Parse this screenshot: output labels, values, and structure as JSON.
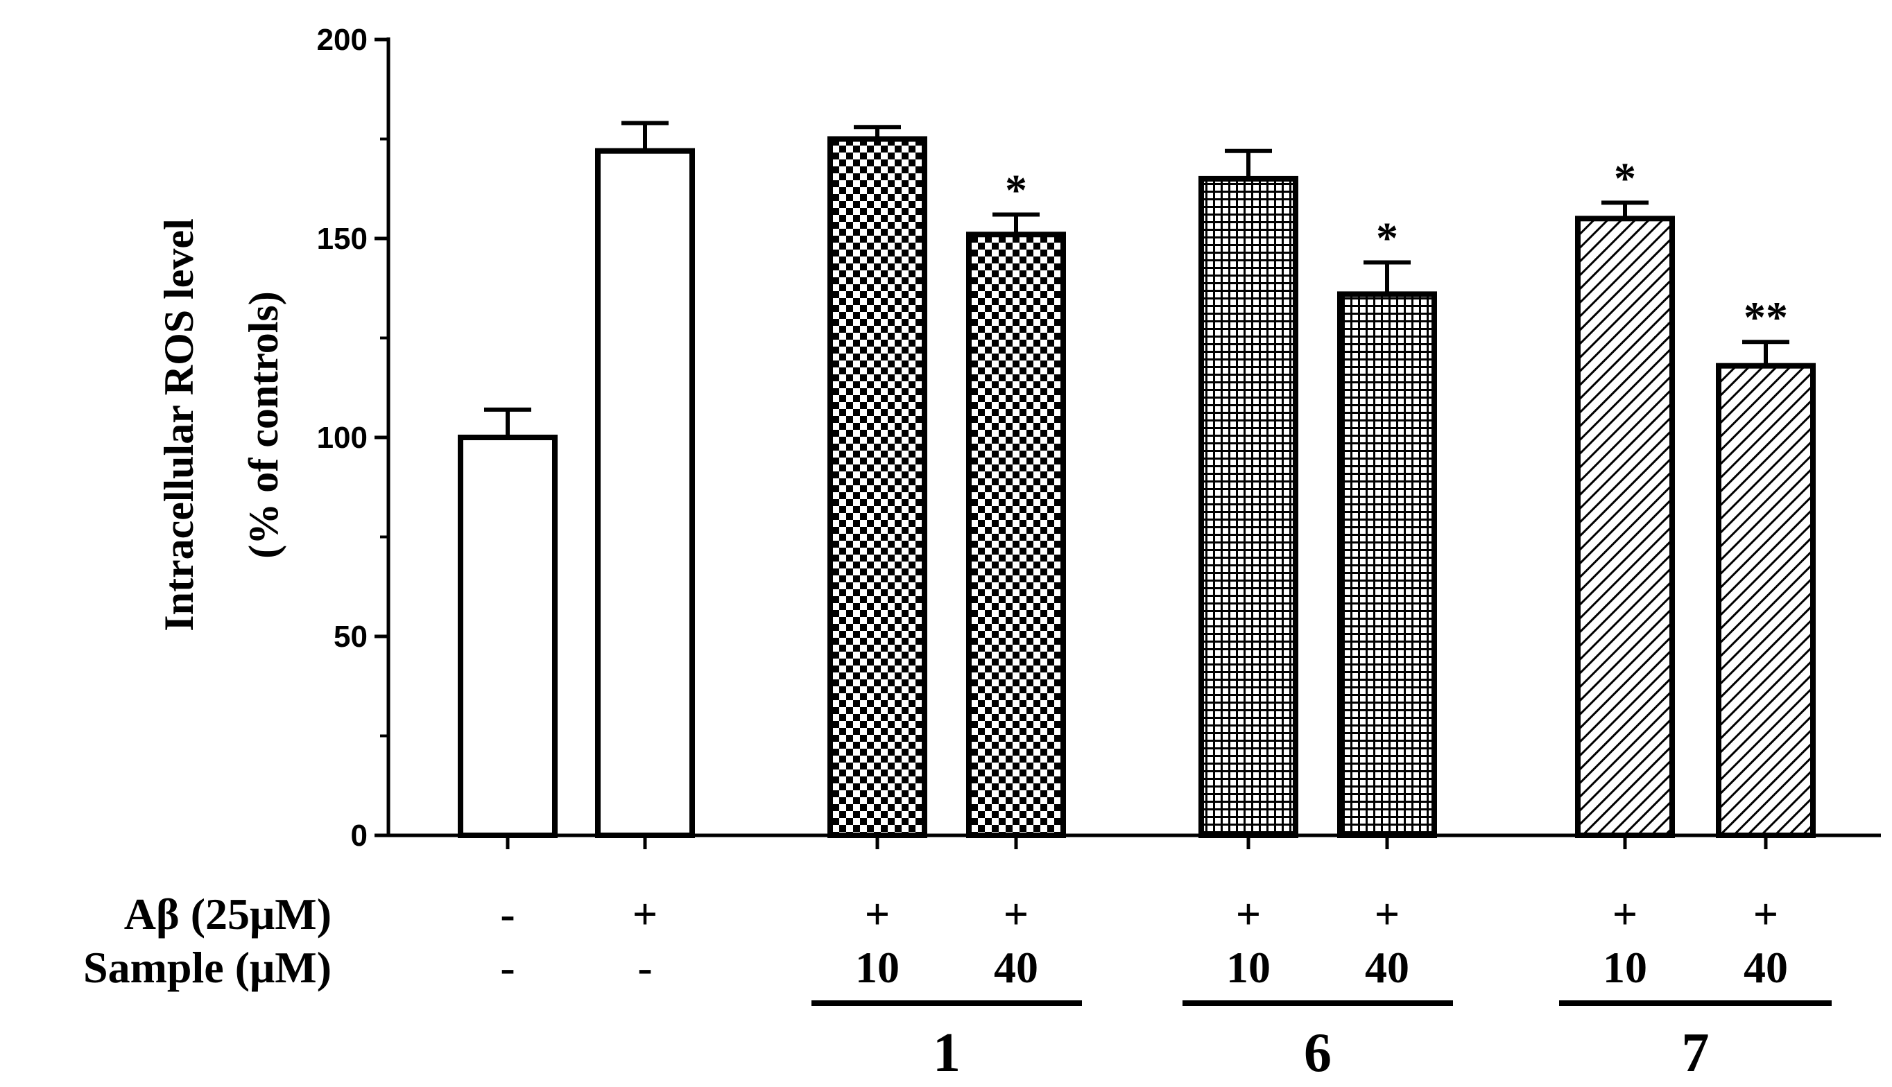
{
  "chart_data": {
    "type": "bar",
    "ylabel_line1": "Intracellular ROS level",
    "ylabel_line2": "(% of controls)",
    "ylim": [
      0,
      200
    ],
    "yticks": [
      "0",
      "50",
      "100",
      "150",
      "200"
    ],
    "row_labels": [
      "Aβ (25μM)",
      "Sample (μM)"
    ],
    "bars": [
      {
        "value": 100,
        "error": 7,
        "pattern": "open",
        "abeta": "-",
        "sample": "-",
        "sig": ""
      },
      {
        "value": 172,
        "error": 7,
        "pattern": "open",
        "abeta": "+",
        "sample": "-",
        "sig": ""
      },
      {
        "value": 175,
        "error": 3,
        "pattern": "checker",
        "abeta": "+",
        "sample": "10",
        "sig": ""
      },
      {
        "value": 151,
        "error": 5,
        "pattern": "checker",
        "abeta": "+",
        "sample": "40",
        "sig": "*"
      },
      {
        "value": 165,
        "error": 7,
        "pattern": "grid",
        "abeta": "+",
        "sample": "10",
        "sig": ""
      },
      {
        "value": 136,
        "error": 8,
        "pattern": "grid",
        "abeta": "+",
        "sample": "40",
        "sig": "*"
      },
      {
        "value": 155,
        "error": 4,
        "pattern": "hatch",
        "abeta": "+",
        "sample": "10",
        "sig": "*"
      },
      {
        "value": 118,
        "error": 6,
        "pattern": "hatch",
        "abeta": "+",
        "sample": "40",
        "sig": "**"
      }
    ],
    "groups": [
      {
        "label": "1",
        "bars": [
          2,
          3
        ]
      },
      {
        "label": "6",
        "bars": [
          4,
          5
        ]
      },
      {
        "label": "7",
        "bars": [
          6,
          7
        ]
      }
    ]
  }
}
